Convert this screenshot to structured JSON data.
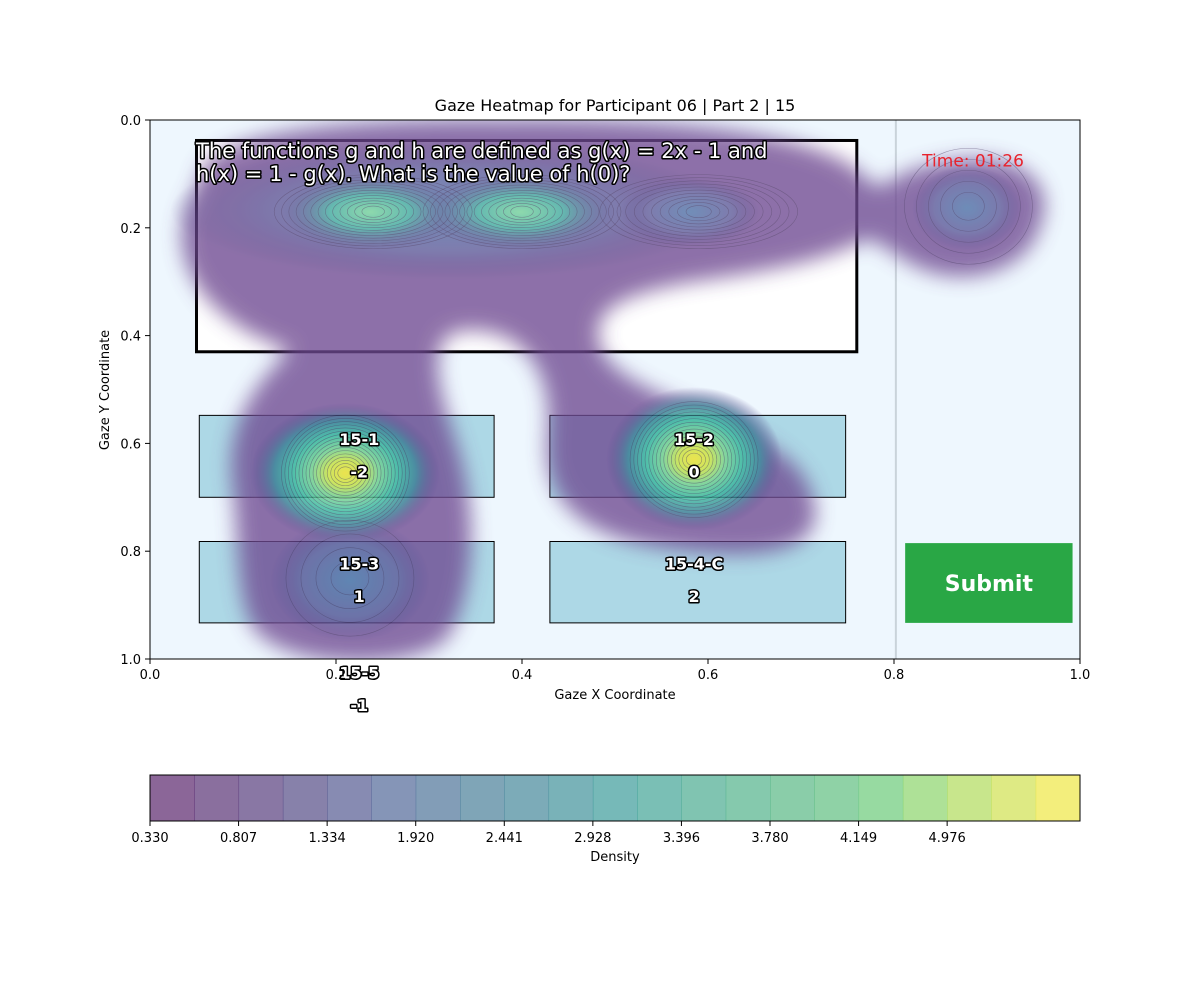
{
  "chart_data": {
    "type": "heatmap",
    "title": "Gaze Heatmap for Participant 06 | Part 2 | 15",
    "xlabel": "Gaze X Coordinate",
    "ylabel": "Gaze Y Coordinate",
    "xlim": [
      0.0,
      1.0
    ],
    "ylim": [
      0.0,
      1.0
    ],
    "y_inverted": true,
    "x_ticks": [
      "0.0",
      "0.2",
      "0.4",
      "0.6",
      "0.8",
      "1.0"
    ],
    "y_ticks": [
      "0.0",
      "0.2",
      "0.4",
      "0.6",
      "0.8",
      "1.0"
    ],
    "background_color": "#eef7fe",
    "divider_x": 0.802,
    "question": {
      "lines": [
        "The functions g and h are defined as g(x) = 2x - 1 and",
        "h(x) = 1 - g(x). What is the value of h(0)?"
      ],
      "box": [
        0.05,
        0.038,
        0.76,
        0.43
      ]
    },
    "timer": {
      "text": "Time: 01:26",
      "x": 0.885,
      "y": 0.075,
      "color": "#e8232d"
    },
    "answer_options": [
      {
        "id": "15-1",
        "value": "-2",
        "box": [
          0.053,
          0.548,
          0.37,
          0.7
        ],
        "label_x": 0.225,
        "id_y": 0.592,
        "value_y": 0.652
      },
      {
        "id": "15-2",
        "value": "0",
        "box": [
          0.43,
          0.548,
          0.748,
          0.7
        ],
        "label_x": 0.585,
        "id_y": 0.592,
        "value_y": 0.652
      },
      {
        "id": "15-3",
        "value": "1",
        "box": [
          0.053,
          0.782,
          0.37,
          0.933
        ],
        "label_x": 0.225,
        "id_y": 0.823,
        "value_y": 0.883
      },
      {
        "id": "15-4-C",
        "value": "2",
        "box": [
          0.43,
          0.782,
          0.748,
          0.933
        ],
        "label_x": 0.585,
        "id_y": 0.823,
        "value_y": 0.883
      },
      {
        "id": "15-5",
        "value": "-1",
        "box": null,
        "label_x": 0.225,
        "id_y": 1.025,
        "value_y": 1.085
      }
    ],
    "option_color": "#add8e6",
    "submit": {
      "label": "Submit",
      "box": [
        0.812,
        0.785,
        0.992,
        0.933
      ],
      "color": "#29a745"
    },
    "density_peaks": [
      {
        "x": 0.21,
        "y": 0.655,
        "level": 5.7
      },
      {
        "x": 0.585,
        "y": 0.63,
        "level": 5.4
      },
      {
        "x": 0.215,
        "y": 0.85,
        "level": 1.3
      },
      {
        "x": 0.24,
        "y": 0.17,
        "level": 4.2
      },
      {
        "x": 0.4,
        "y": 0.17,
        "level": 4.3
      },
      {
        "x": 0.59,
        "y": 0.17,
        "level": 3.6
      },
      {
        "x": 0.88,
        "y": 0.16,
        "level": 1.5
      }
    ],
    "colorbar": {
      "label": "Density",
      "ticks": [
        "0.330",
        "0.807",
        "1.334",
        "1.920",
        "2.441",
        "2.928",
        "3.396",
        "3.780",
        "4.149",
        "4.976"
      ],
      "levels": [
        0.33,
        0.57,
        0.807,
        1.07,
        1.334,
        1.63,
        1.92,
        2.18,
        2.441,
        2.69,
        2.928,
        3.16,
        3.396,
        3.59,
        3.78,
        3.96,
        4.149,
        4.56,
        4.976,
        5.3,
        5.6,
        5.9
      ]
    }
  }
}
